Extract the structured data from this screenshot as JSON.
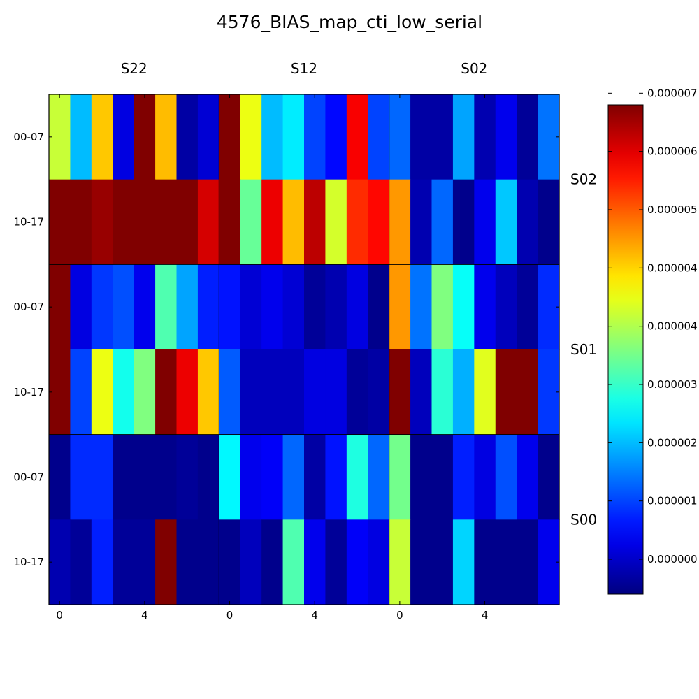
{
  "chart_data": {
    "type": "heatmap",
    "title": "4576_BIAS_map_cti_low_serial",
    "colormap": "jet",
    "column_groups": [
      "S22",
      "S12",
      "S02"
    ],
    "row_groups": [
      "S02",
      "S01",
      "S00"
    ],
    "row_tick_labels": [
      "00-07",
      "10-17"
    ],
    "column_tick_labels": [
      "0",
      "4"
    ],
    "colorbar": {
      "vmin": -6e-07,
      "vmax": 7.8e-06,
      "tick_labels": [
        "0.000000",
        "0.000001",
        "0.000002",
        "0.000003",
        "0.000004",
        "0.000004",
        "0.000005",
        "0.000006",
        "0.000007"
      ],
      "tick_values": [
        0.0,
        1e-06,
        2e-06,
        3e-06,
        4e-06,
        5e-06,
        6e-06,
        7e-06,
        8e-06
      ]
    },
    "values_e6": [
      [
        4.2,
        2.0,
        5.1,
        0.2,
        7.8,
        5.2,
        -0.3,
        0.1,
        7.8,
        4.5,
        2.0,
        2.4,
        1.0,
        0.5,
        6.8,
        1.0,
        1.3,
        -0.3,
        -0.3,
        1.8,
        -0.2,
        0.3,
        -0.4,
        1.4
      ],
      [
        7.8,
        7.8,
        7.6,
        7.8,
        7.8,
        7.8,
        7.8,
        7.1,
        7.8,
        3.4,
        6.9,
        5.2,
        7.3,
        4.3,
        6.4,
        6.7,
        5.5,
        -0.2,
        1.3,
        -0.5,
        0.3,
        2.1,
        -0.2,
        -0.5
      ],
      [
        7.8,
        0.2,
        0.9,
        1.1,
        0.3,
        3.2,
        1.8,
        0.7,
        0.6,
        0.1,
        0.3,
        0.1,
        -0.4,
        -0.2,
        0.2,
        -0.5,
        5.5,
        1.4,
        3.6,
        2.6,
        0.3,
        -0.1,
        -0.4,
        0.8
      ],
      [
        7.8,
        1.0,
        4.5,
        2.7,
        3.6,
        7.8,
        6.9,
        5.1,
        1.2,
        -0.1,
        -0.1,
        -0.1,
        0.2,
        0.2,
        -0.4,
        -0.3,
        7.8,
        -0.1,
        2.9,
        1.9,
        4.4,
        7.8,
        7.8,
        0.9
      ],
      [
        -0.5,
        0.8,
        0.8,
        -0.5,
        -0.5,
        -0.5,
        -0.4,
        -0.5,
        2.5,
        0.3,
        0.4,
        1.3,
        -0.3,
        0.6,
        2.8,
        1.3,
        3.5,
        -0.5,
        -0.5,
        0.7,
        0.2,
        1.1,
        0.3,
        -0.5
      ],
      [
        -0.2,
        -0.4,
        0.7,
        -0.4,
        -0.4,
        7.8,
        -0.5,
        -0.5,
        -0.5,
        -0.1,
        -0.5,
        3.2,
        0.3,
        -0.4,
        0.4,
        0.2,
        4.2,
        -0.5,
        -0.5,
        2.2,
        -0.5,
        -0.5,
        -0.5,
        0.3
      ]
    ]
  }
}
